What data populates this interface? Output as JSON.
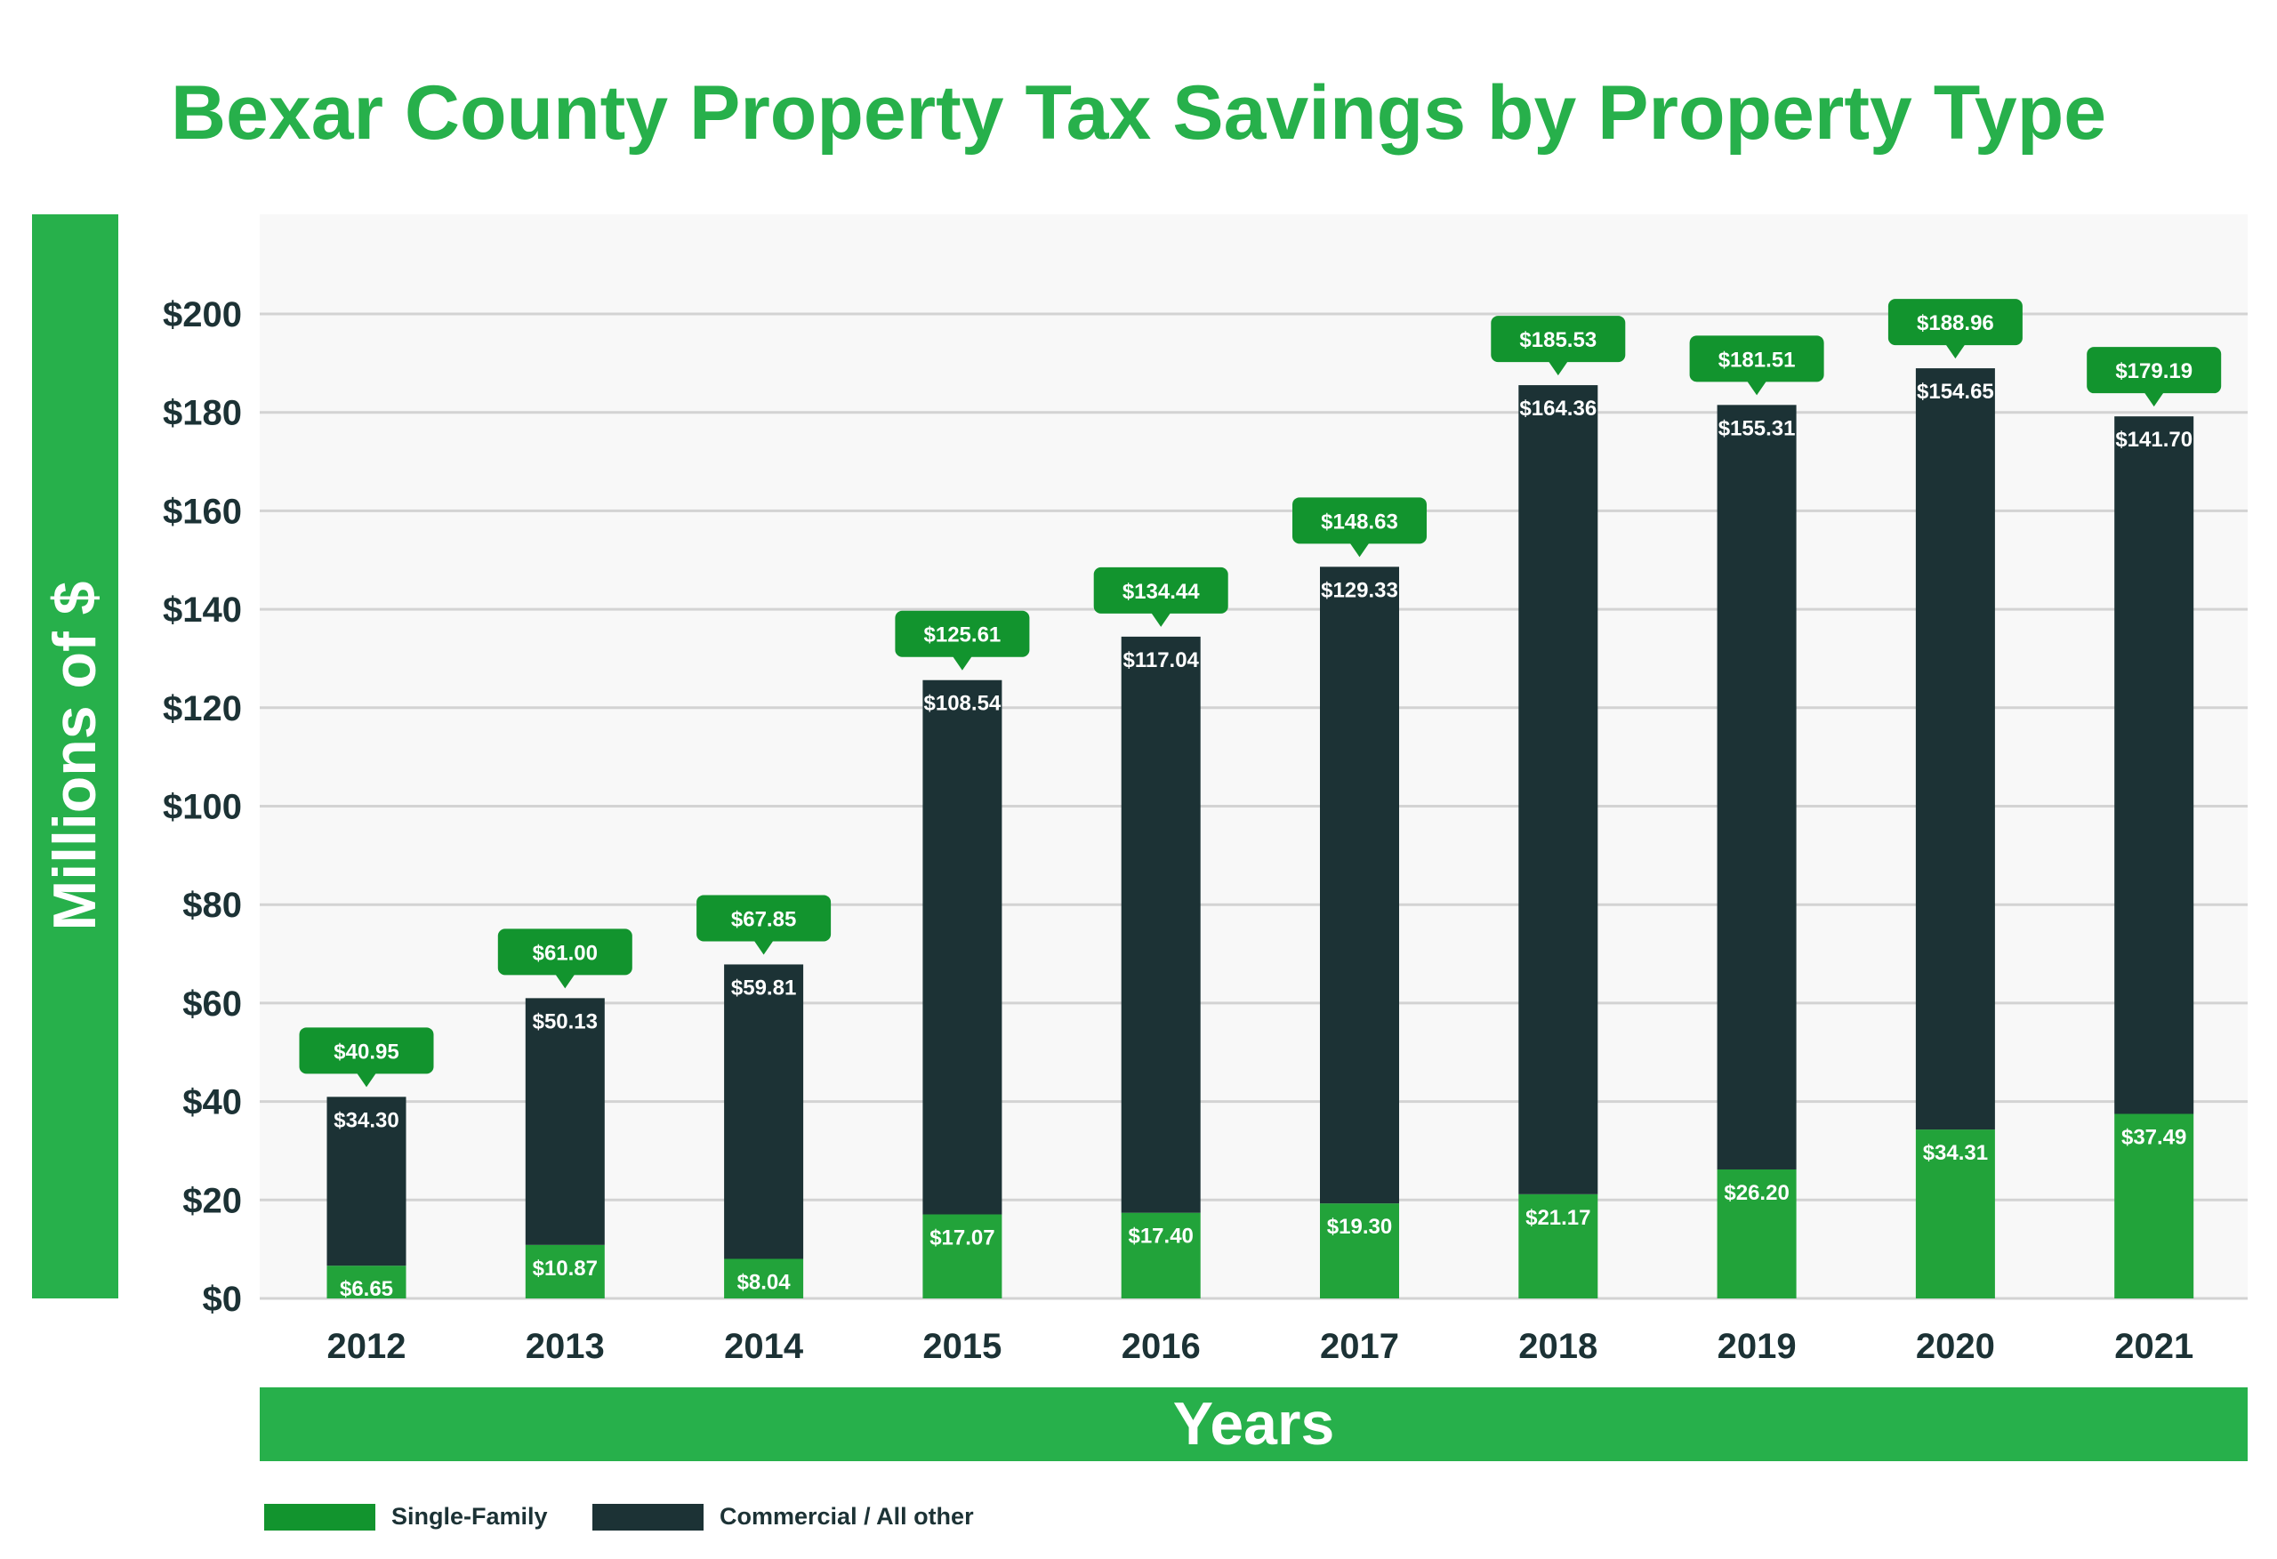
{
  "chart_data": {
    "type": "bar",
    "stacked": true,
    "title": "Bexar County Property Tax Savings by Property Type",
    "xlabel": "Years",
    "ylabel": "Millions of $",
    "ylim": [
      0,
      220
    ],
    "yticks": [
      0,
      20,
      40,
      60,
      80,
      100,
      120,
      140,
      160,
      180,
      200
    ],
    "ytick_labels": [
      "$0",
      "$20",
      "$40",
      "$60",
      "$80",
      "$100",
      "$120",
      "$140",
      "$160",
      "$180",
      "$200"
    ],
    "grid": true,
    "legend_position": "bottom-left",
    "categories": [
      "2012",
      "2013",
      "2014",
      "2015",
      "2016",
      "2017",
      "2018",
      "2019",
      "2020",
      "2021"
    ],
    "series": [
      {
        "name": "Single-Family",
        "color": "#22a33a",
        "values": [
          6.65,
          10.87,
          8.04,
          17.07,
          17.4,
          19.3,
          21.17,
          26.2,
          34.31,
          37.49
        ]
      },
      {
        "name": "Commercial / All other",
        "color": "#1c3235",
        "values": [
          34.3,
          50.13,
          59.81,
          108.54,
          117.04,
          129.33,
          164.36,
          155.31,
          154.65,
          141.7
        ]
      }
    ],
    "totals": [
      40.95,
      61.0,
      67.85,
      125.61,
      134.44,
      148.63,
      185.53,
      181.51,
      188.96,
      179.19
    ],
    "callout_color": "#12942e"
  }
}
